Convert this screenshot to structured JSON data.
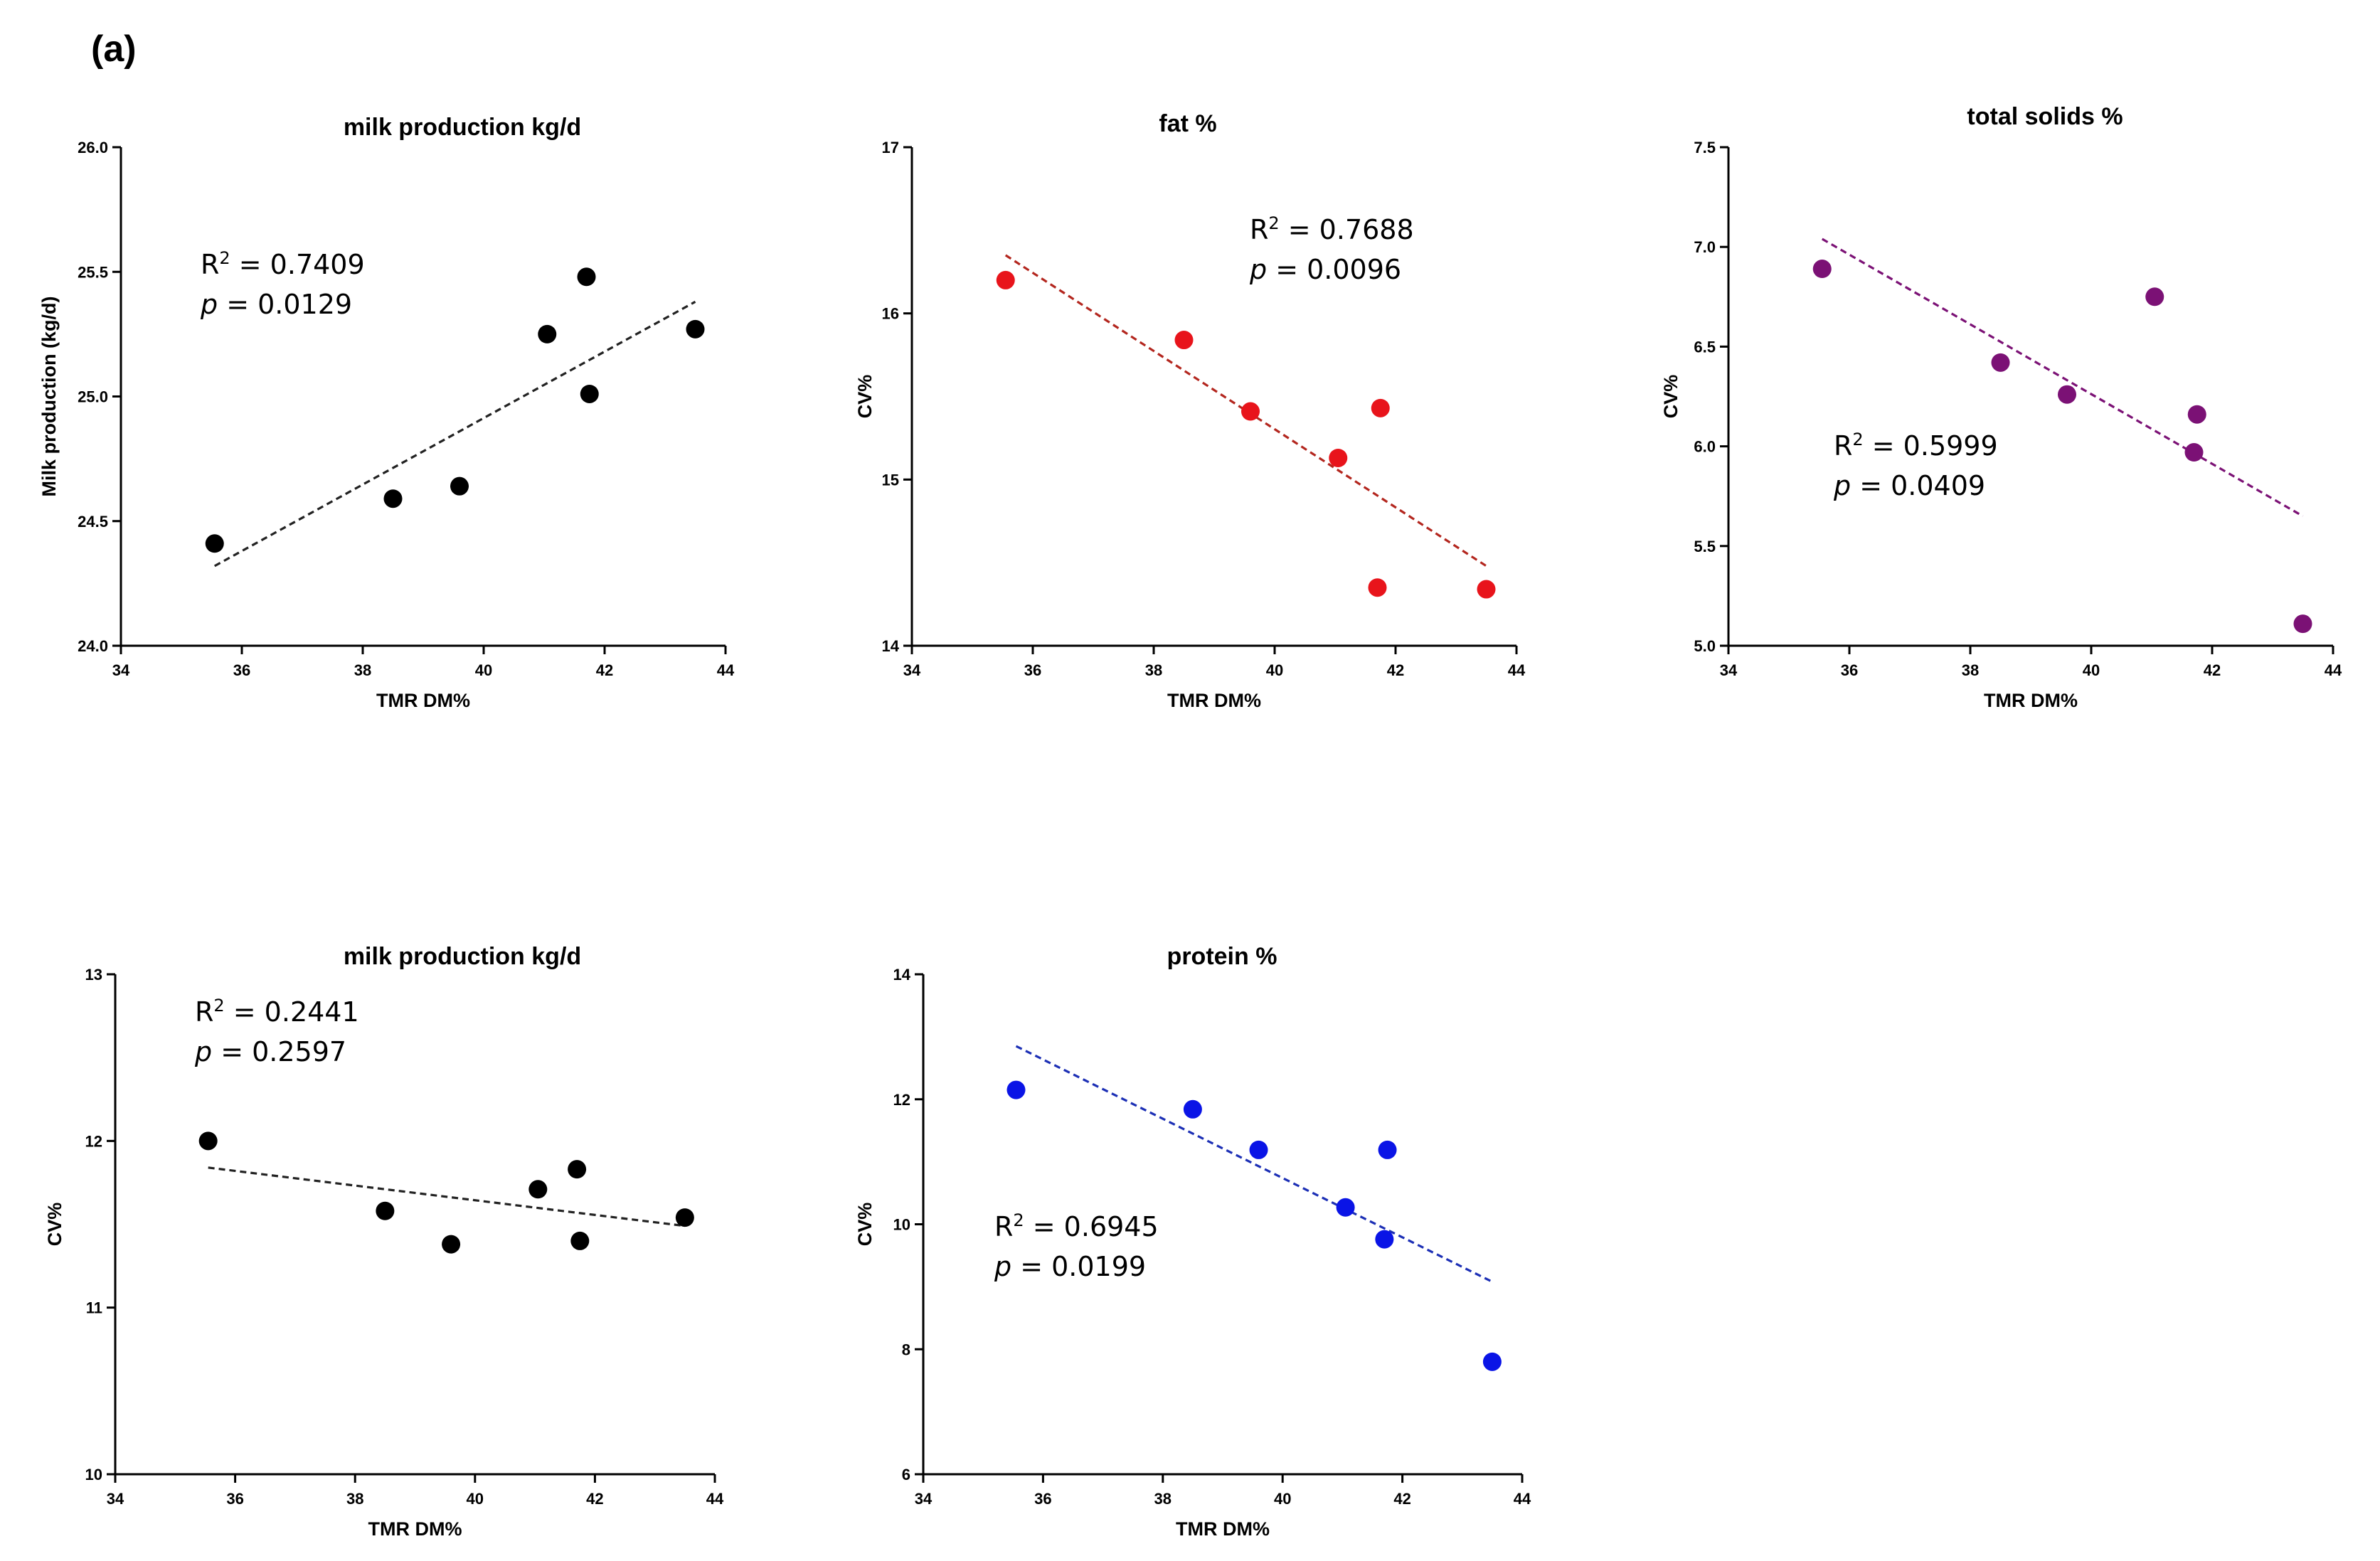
{
  "figure": {
    "panel_label": "(a)"
  },
  "chart_data": [
    {
      "type": "scatter",
      "title": "milk production kg/d",
      "xlabel": "TMR DM%",
      "ylabel": "Milk production (kg/d)",
      "xlim": [
        34,
        44
      ],
      "ylim": [
        24.0,
        26.0
      ],
      "xticks": [
        "34",
        "36",
        "38",
        "40",
        "42",
        "44"
      ],
      "yticks": [
        "24.0",
        "24.5",
        "25.0",
        "25.5",
        "26.0"
      ],
      "color": "#000000",
      "line_color": "#222222",
      "points": [
        {
          "x": 35.55,
          "y": 24.41
        },
        {
          "x": 38.5,
          "y": 24.59
        },
        {
          "x": 39.6,
          "y": 24.64
        },
        {
          "x": 41.05,
          "y": 25.25
        },
        {
          "x": 41.7,
          "y": 25.48
        },
        {
          "x": 41.75,
          "y": 25.01
        },
        {
          "x": 43.5,
          "y": 25.27
        }
      ],
      "fit": {
        "x0": 35.55,
        "y0": 24.32,
        "x1": 43.5,
        "y1": 25.38
      },
      "r2_prefix": "R",
      "r2_sup": "2",
      "r2_value": " = 0.7409",
      "p_label": "p",
      "p_value": " = 0.0129"
    },
    {
      "type": "scatter",
      "title": "fat %",
      "xlabel": "TMR DM%",
      "ylabel": "CV%",
      "xlim": [
        34,
        44
      ],
      "ylim": [
        14,
        17
      ],
      "xticks": [
        "34",
        "36",
        "38",
        "40",
        "42",
        "44"
      ],
      "yticks": [
        "14",
        "15",
        "16",
        "17"
      ],
      "color": "#e8141b",
      "line_color": "#b3261e",
      "points": [
        {
          "x": 35.55,
          "y": 16.2
        },
        {
          "x": 38.5,
          "y": 15.84
        },
        {
          "x": 39.6,
          "y": 15.41
        },
        {
          "x": 41.05,
          "y": 15.13
        },
        {
          "x": 41.7,
          "y": 14.35
        },
        {
          "x": 41.75,
          "y": 15.43
        },
        {
          "x": 43.5,
          "y": 14.34
        }
      ],
      "fit": {
        "x0": 35.55,
        "y0": 16.35,
        "x1": 43.5,
        "y1": 14.48
      },
      "r2_prefix": "R",
      "r2_sup": "2",
      "r2_value": " = 0.7688",
      "p_label": "p",
      "p_value": " = 0.0096"
    },
    {
      "type": "scatter",
      "title": "total solids %",
      "xlabel": "TMR DM%",
      "ylabel": "CV%",
      "xlim": [
        34,
        44
      ],
      "ylim": [
        5.0,
        7.5
      ],
      "xticks": [
        "34",
        "36",
        "38",
        "40",
        "42",
        "44"
      ],
      "yticks": [
        "5.0",
        "5.5",
        "6.0",
        "6.5",
        "7.0",
        "7.5"
      ],
      "color": "#7b1175",
      "line_color": "#7b1175",
      "points": [
        {
          "x": 35.55,
          "y": 6.89
        },
        {
          "x": 38.5,
          "y": 6.42
        },
        {
          "x": 39.6,
          "y": 6.26
        },
        {
          "x": 41.05,
          "y": 6.75
        },
        {
          "x": 41.7,
          "y": 5.97
        },
        {
          "x": 41.75,
          "y": 6.16
        },
        {
          "x": 43.5,
          "y": 5.11
        }
      ],
      "fit": {
        "x0": 35.55,
        "y0": 7.04,
        "x1": 43.5,
        "y1": 5.65
      },
      "r2_prefix": "R",
      "r2_sup": "2",
      "r2_value": " = 0.5999",
      "p_label": "p",
      "p_value": " = 0.0409"
    },
    {
      "type": "scatter",
      "title": "milk production kg/d",
      "xlabel": "TMR DM%",
      "ylabel": "CV%",
      "xlim": [
        34,
        44
      ],
      "ylim": [
        10,
        13
      ],
      "xticks": [
        "34",
        "36",
        "38",
        "40",
        "42",
        "44"
      ],
      "yticks": [
        "10",
        "11",
        "12",
        "13"
      ],
      "color": "#000000",
      "line_color": "#222222",
      "points": [
        {
          "x": 35.55,
          "y": 12.0
        },
        {
          "x": 38.5,
          "y": 11.58
        },
        {
          "x": 39.6,
          "y": 11.38
        },
        {
          "x": 41.05,
          "y": 11.71
        },
        {
          "x": 41.7,
          "y": 11.83
        },
        {
          "x": 41.75,
          "y": 11.4
        },
        {
          "x": 43.5,
          "y": 11.54
        }
      ],
      "fit": {
        "x0": 35.55,
        "y0": 11.84,
        "x1": 43.5,
        "y1": 11.49
      },
      "r2_prefix": "R",
      "r2_sup": "2",
      "r2_value": " = 0.2441",
      "p_label": "p",
      "p_value": " = 0.2597"
    },
    {
      "type": "scatter",
      "title": "protein %",
      "xlabel": "TMR DM%",
      "ylabel": "CV%",
      "xlim": [
        34,
        44
      ],
      "ylim": [
        6,
        14
      ],
      "xticks": [
        "34",
        "36",
        "38",
        "40",
        "42",
        "44"
      ],
      "yticks": [
        "6",
        "8",
        "10",
        "12",
        "14"
      ],
      "color": "#0a14e6",
      "line_color": "#1c2fb5",
      "points": [
        {
          "x": 35.55,
          "y": 12.15
        },
        {
          "x": 38.5,
          "y": 11.84
        },
        {
          "x": 39.6,
          "y": 11.19
        },
        {
          "x": 41.05,
          "y": 10.27
        },
        {
          "x": 41.7,
          "y": 9.76
        },
        {
          "x": 41.75,
          "y": 11.19
        },
        {
          "x": 43.5,
          "y": 7.8
        }
      ],
      "fit": {
        "x0": 35.55,
        "y0": 12.85,
        "x1": 43.5,
        "y1": 9.08
      },
      "r2_prefix": "R",
      "r2_sup": "2",
      "r2_value": " = 0.6945",
      "p_label": "p",
      "p_value": " = 0.0199"
    }
  ]
}
